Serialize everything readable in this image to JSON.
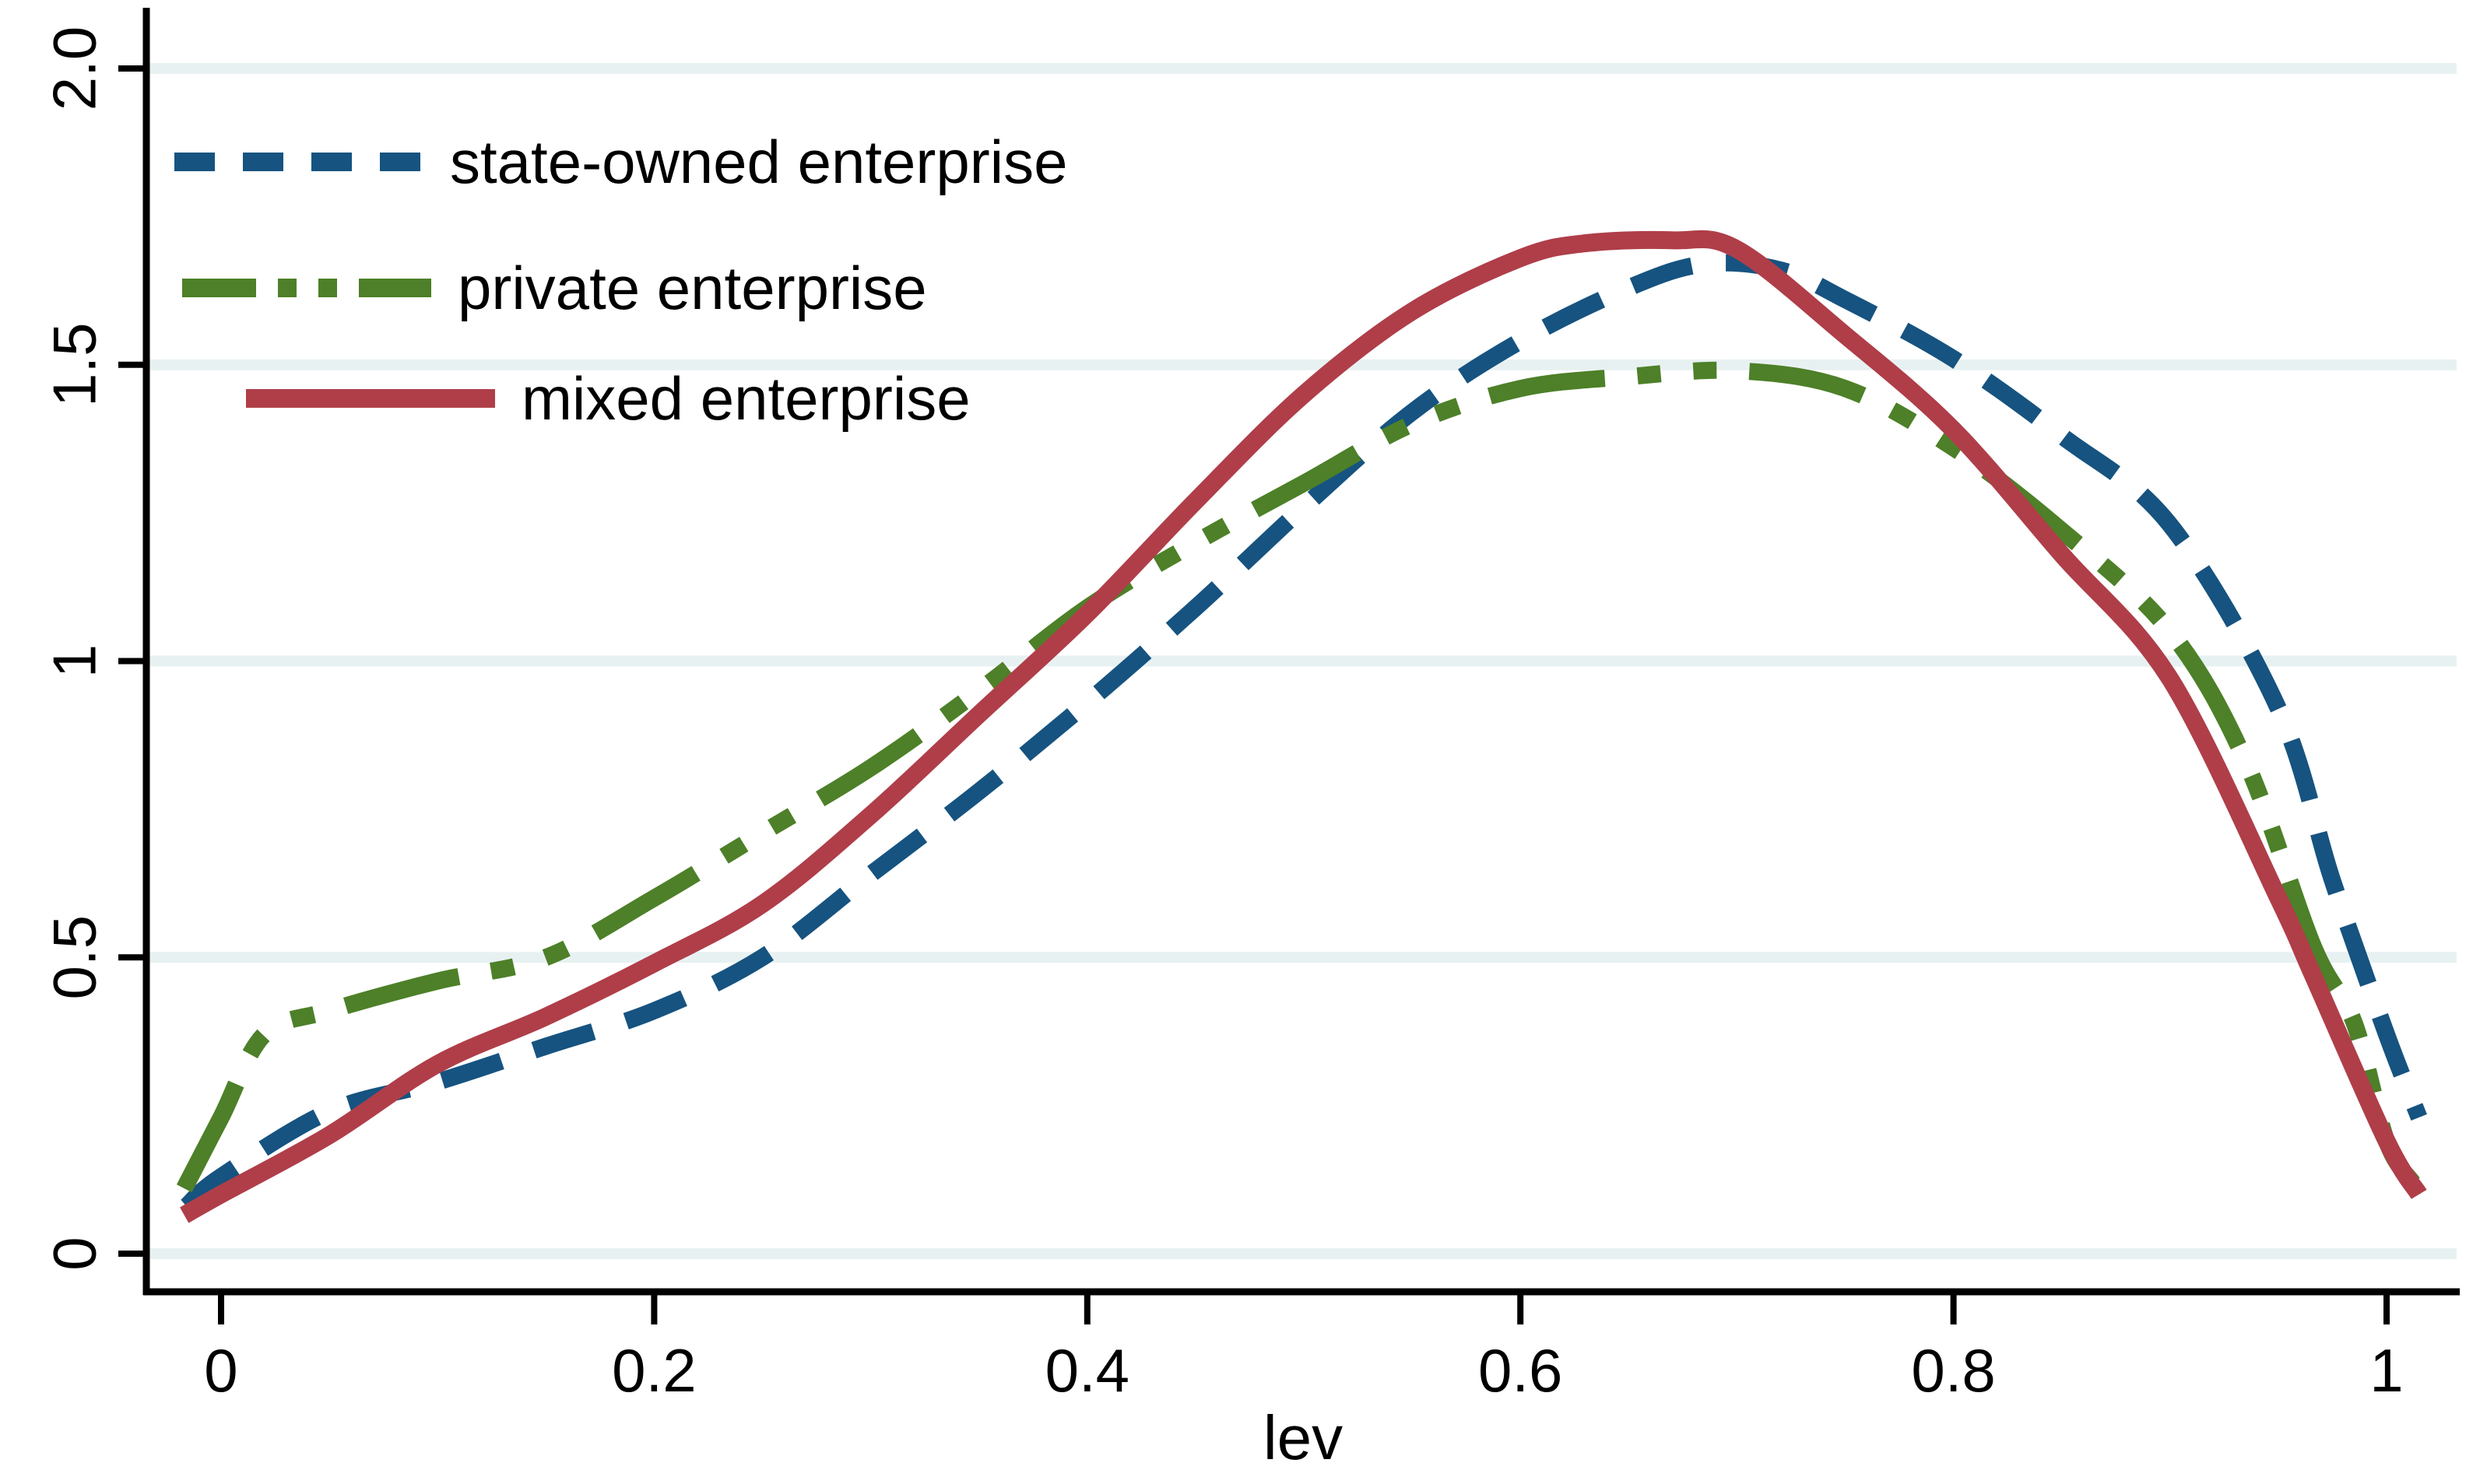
{
  "figure": {
    "kind": "stata-style kernel density line plot",
    "background": "#FFFFFF"
  },
  "legend": {
    "position": "top-left-inside",
    "items": [
      {
        "label": "state-owned enterprise",
        "color": "#165380",
        "line_style": "dashed"
      },
      {
        "label": "private enterprise",
        "color": "#4D8028",
        "line_style": "dash-dot-dot"
      },
      {
        "label": "mixed enterprise",
        "color": "#AF3E49",
        "line_style": "solid"
      }
    ]
  },
  "axes": {
    "x": {
      "label": "lev",
      "ticks": [
        {
          "label": "0",
          "value": 0
        },
        {
          "label": "0.2",
          "value": 0.2
        },
        {
          "label": "0.4",
          "value": 0.4
        },
        {
          "label": "0.6",
          "value": 0.6
        },
        {
          "label": "0.8",
          "value": 0.8
        },
        {
          "label": "1",
          "value": 1
        }
      ]
    },
    "y": {
      "ticks": [
        {
          "label": "0",
          "value": 0
        },
        {
          "label": "0.5",
          "value": 0.5
        },
        {
          "label": "1",
          "value": 1
        },
        {
          "label": "1.5",
          "value": 1.5
        },
        {
          "label": "2.0",
          "value": 2
        }
      ]
    }
  },
  "style": {
    "grid_color": "#E8F1F2",
    "axis_color": "#000000",
    "text_color": "#000000"
  },
  "chart_data": {
    "type": "line",
    "title": "",
    "xlabel": "lev",
    "ylabel": "",
    "xlim": [
      -0.05,
      1.06
    ],
    "ylim": [
      0,
      2.07
    ],
    "grid": "horizontal gridlines at y ticks",
    "legend_position": "top-left inside plot, no frame",
    "series": [
      {
        "name": "state-owned enterprise",
        "color": "#165380",
        "line_style": "dashed",
        "width": 22,
        "x": [
          -0.016,
          0.0,
          0.05,
          0.1,
          0.15,
          0.2,
          0.25,
          0.3,
          0.35,
          0.4,
          0.45,
          0.5,
          0.55,
          0.6,
          0.65,
          0.685,
          0.72,
          0.75,
          0.8,
          0.85,
          0.9,
          0.95,
          0.975,
          1.0,
          1.015
        ],
        "y": [
          0.08,
          0.13,
          0.24,
          0.29,
          0.35,
          0.41,
          0.5,
          0.64,
          0.78,
          0.93,
          1.09,
          1.26,
          1.42,
          1.54,
          1.63,
          1.67,
          1.66,
          1.61,
          1.51,
          1.38,
          1.23,
          0.92,
          0.63,
          0.37,
          0.23
        ]
      },
      {
        "name": "private enterprise",
        "color": "#4D8028",
        "line_style": "dash-dot-dot",
        "width": 22,
        "x": [
          -0.017,
          0.0,
          0.02,
          0.05,
          0.1,
          0.15,
          0.2,
          0.25,
          0.3,
          0.35,
          0.4,
          0.45,
          0.5,
          0.55,
          0.6,
          0.65,
          0.7,
          0.75,
          0.8,
          0.85,
          0.9,
          0.935,
          0.966,
          0.985,
          1.0,
          1.012
        ],
        "y": [
          0.11,
          0.23,
          0.37,
          0.41,
          0.46,
          0.5,
          0.6,
          0.71,
          0.82,
          0.95,
          1.09,
          1.2,
          1.3,
          1.4,
          1.46,
          1.48,
          1.49,
          1.46,
          1.36,
          1.22,
          1.05,
          0.83,
          0.52,
          0.39,
          0.19,
          0.12
        ]
      },
      {
        "name": "mixed enterprise",
        "color": "#AF3E49",
        "line_style": "solid",
        "width": 23,
        "x": [
          -0.017,
          0.0,
          0.05,
          0.1,
          0.15,
          0.2,
          0.25,
          0.3,
          0.35,
          0.4,
          0.45,
          0.5,
          0.55,
          0.6,
          0.63,
          0.67,
          0.7,
          0.75,
          0.8,
          0.85,
          0.9,
          0.95,
          0.966,
          1.0,
          1.015
        ],
        "y": [
          0.065,
          0.1,
          0.2,
          0.32,
          0.4,
          0.49,
          0.59,
          0.74,
          0.91,
          1.08,
          1.27,
          1.45,
          1.59,
          1.68,
          1.705,
          1.71,
          1.695,
          1.55,
          1.39,
          1.18,
          0.97,
          0.6,
          0.47,
          0.19,
          0.1
        ]
      }
    ]
  }
}
